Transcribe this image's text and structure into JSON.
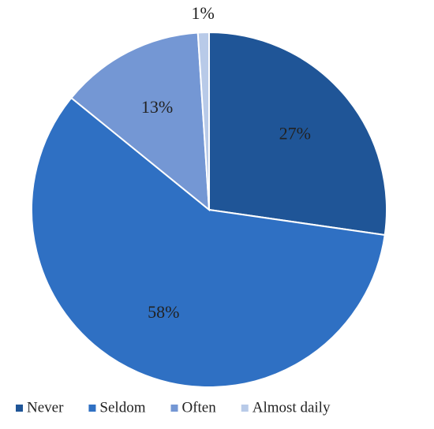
{
  "chart_data": {
    "type": "pie",
    "categories": [
      "Never",
      "Seldom",
      "Often",
      "Almost daily"
    ],
    "values": [
      27,
      58,
      13,
      1
    ],
    "value_labels": [
      "27%",
      "58%",
      "13%",
      "1%"
    ],
    "colors": [
      "#1f5597",
      "#2f70c3",
      "#7497d4",
      "#b8cae8"
    ],
    "legend": "bottom"
  }
}
